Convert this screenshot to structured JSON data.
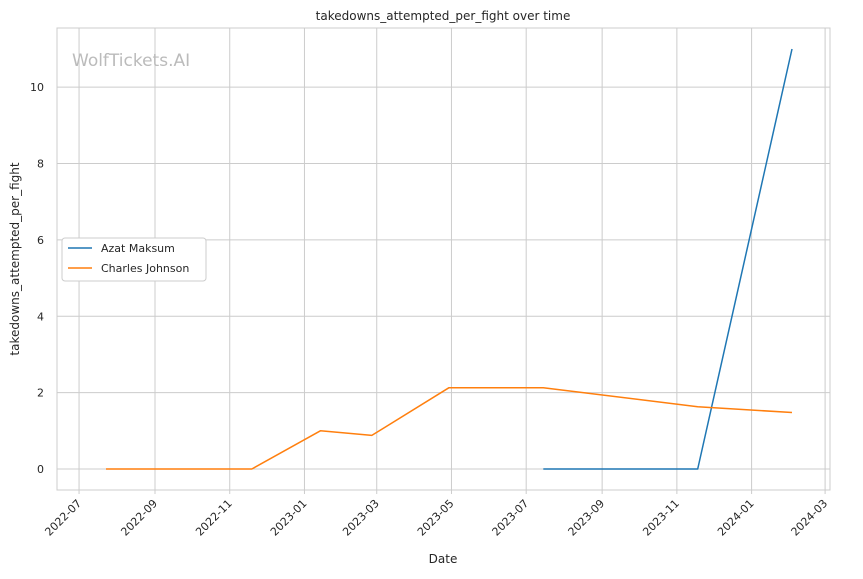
{
  "chart_data": {
    "type": "line",
    "title": "takedowns_attempted_per_fight over time",
    "xlabel": "Date",
    "ylabel": "takedowns_attempted_per_fight",
    "watermark": "WolfTickets.AI",
    "x_ticks": [
      "2022-07",
      "2022-09",
      "2022-11",
      "2023-01",
      "2023-03",
      "2023-05",
      "2023-07",
      "2023-09",
      "2023-11",
      "2024-01",
      "2024-03"
    ],
    "y_ticks": [
      0,
      2,
      4,
      6,
      8,
      10
    ],
    "xlim": [
      "2022-06-13",
      "2024-03-05"
    ],
    "ylim": [
      -0.55,
      11.55
    ],
    "grid": true,
    "legend_position": "center-left",
    "series": [
      {
        "name": "Azat Maksum",
        "color": "#1f77b4",
        "points": [
          {
            "x": "2023-07-15",
            "y": 0
          },
          {
            "x": "2023-11-18",
            "y": 0
          },
          {
            "x": "2024-02-03",
            "y": 11
          }
        ]
      },
      {
        "name": "Charles Johnson",
        "color": "#ff7f0e",
        "points": [
          {
            "x": "2022-07-23",
            "y": 0
          },
          {
            "x": "2022-11-19",
            "y": 0
          },
          {
            "x": "2023-01-14",
            "y": 1.0
          },
          {
            "x": "2023-02-25",
            "y": 0.88
          },
          {
            "x": "2023-04-29",
            "y": 2.13
          },
          {
            "x": "2023-07-15",
            "y": 2.13
          },
          {
            "x": "2023-11-18",
            "y": 1.63
          },
          {
            "x": "2024-02-03",
            "y": 1.48
          }
        ]
      }
    ]
  }
}
